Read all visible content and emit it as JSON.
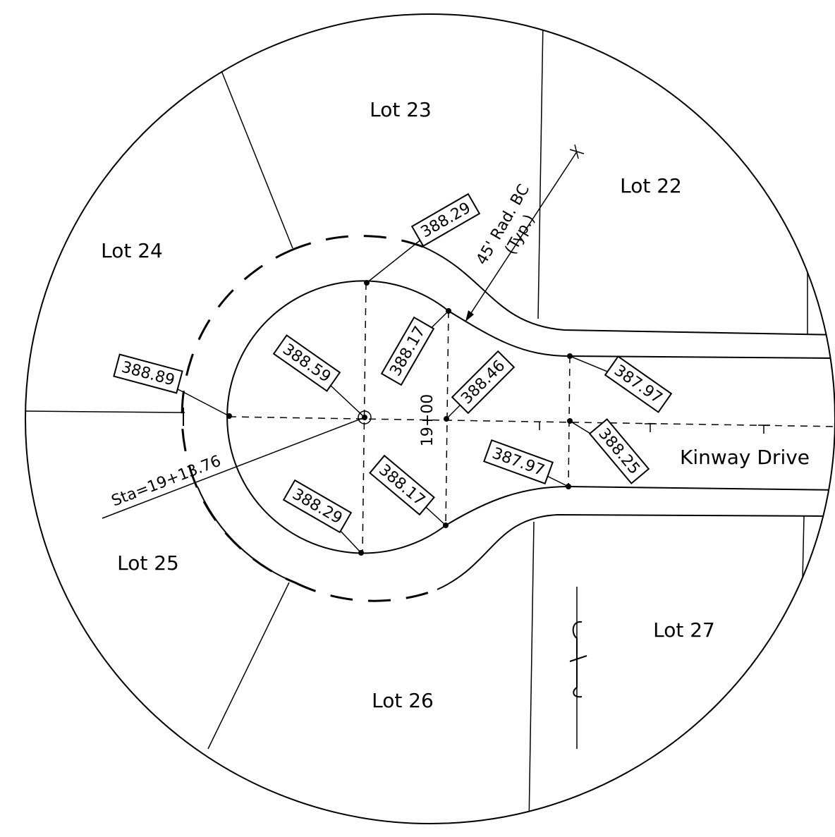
{
  "lots": [
    {
      "label": "Lot 23"
    },
    {
      "label": "Lot 22"
    },
    {
      "label": "Lot 24"
    },
    {
      "label": "Lot 25"
    },
    {
      "label": "Lot 26"
    },
    {
      "label": "Lot 27"
    }
  ],
  "street": "Kinway Drive",
  "station": "19+00",
  "station_note": "Sta=19+13.76",
  "radius_note": [
    "45' Rad. BC",
    "(Typ.)"
  ],
  "elevations": [
    "388.29",
    "388.89",
    "388.59",
    "388.17",
    "388.46",
    "387.97",
    "388.25",
    "387.97",
    "388.17",
    "388.29"
  ]
}
